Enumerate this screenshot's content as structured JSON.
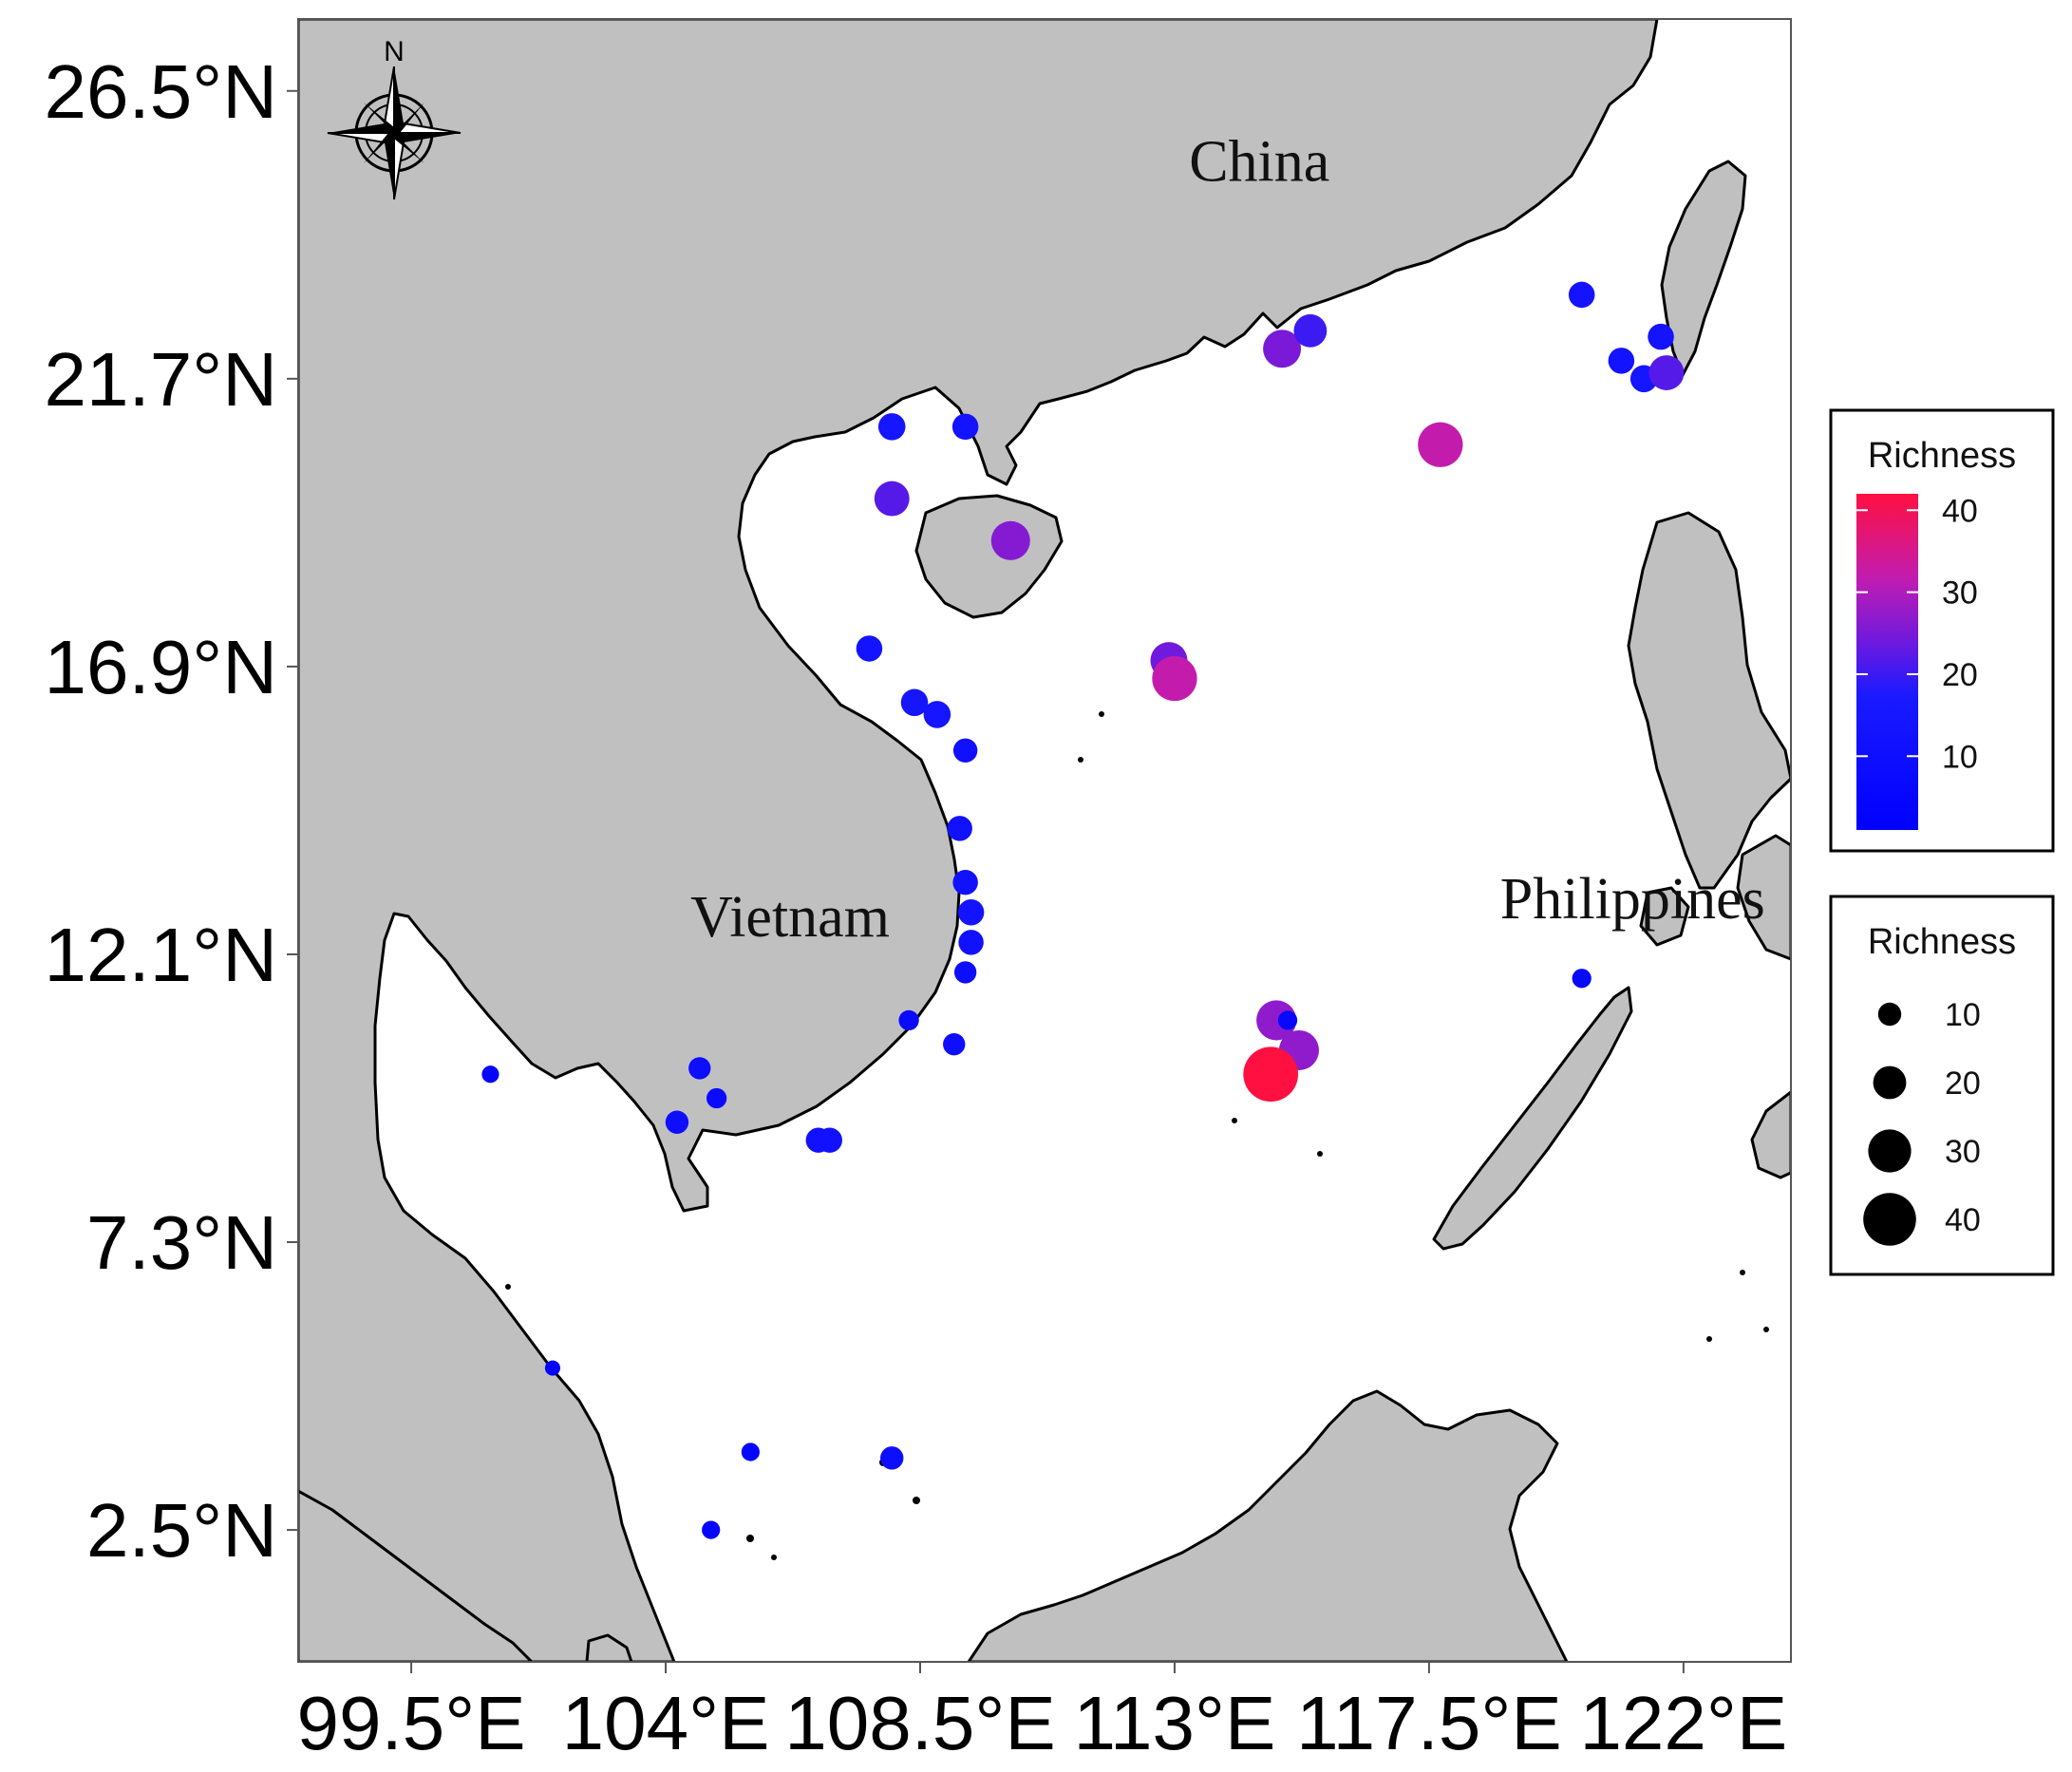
{
  "map": {
    "extent": {
      "lon": [
        97.5,
        123.9
      ],
      "lat": [
        0.3,
        27.7
      ]
    },
    "colors": {
      "land": "#c0c0c0",
      "sea": "#ffffff",
      "coast": "#000000"
    },
    "lat_ticks": [
      {
        "value": 26.5,
        "label": "26.5°N"
      },
      {
        "value": 21.7,
        "label": "21.7°N"
      },
      {
        "value": 16.9,
        "label": "16.9°N"
      },
      {
        "value": 12.1,
        "label": "12.1°N"
      },
      {
        "value": 7.3,
        "label": "7.3°N"
      },
      {
        "value": 2.5,
        "label": "2.5°N"
      }
    ],
    "lon_ticks": [
      {
        "value": 99.5,
        "label": "99.5°E"
      },
      {
        "value": 104,
        "label": "104°E"
      },
      {
        "value": 108.5,
        "label": "108.5°E"
      },
      {
        "value": 113,
        "label": "113°E"
      },
      {
        "value": 117.5,
        "label": "117.5°E"
      },
      {
        "value": 122,
        "label": "122°E"
      }
    ],
    "place_labels": {
      "china": {
        "text": "China",
        "lon": 114.5,
        "lat": 25.0
      },
      "vietnam": {
        "text": "Vietnam",
        "lon": 106.2,
        "lat": 12.4
      },
      "philippines": {
        "text": "Philippines",
        "lon": 121.1,
        "lat": 12.7
      }
    },
    "north_arrow": {
      "letter": "N"
    }
  },
  "points": [
    {
      "lon": 108.0,
      "lat": 20.9,
      "richness": 14
    },
    {
      "lon": 109.3,
      "lat": 20.9,
      "richness": 13
    },
    {
      "lon": 108.0,
      "lat": 19.7,
      "richness": 22
    },
    {
      "lon": 110.1,
      "lat": 19.0,
      "richness": 26
    },
    {
      "lon": 107.6,
      "lat": 17.2,
      "richness": 13
    },
    {
      "lon": 108.4,
      "lat": 16.3,
      "richness": 14
    },
    {
      "lon": 108.8,
      "lat": 16.1,
      "richness": 14
    },
    {
      "lon": 109.3,
      "lat": 15.5,
      "richness": 11
    },
    {
      "lon": 109.2,
      "lat": 14.2,
      "richness": 12
    },
    {
      "lon": 109.3,
      "lat": 13.3,
      "richness": 12
    },
    {
      "lon": 109.4,
      "lat": 12.8,
      "richness": 13
    },
    {
      "lon": 109.4,
      "lat": 12.3,
      "richness": 12
    },
    {
      "lon": 109.3,
      "lat": 11.8,
      "richness": 9
    },
    {
      "lon": 108.3,
      "lat": 11.0,
      "richness": 7
    },
    {
      "lon": 109.1,
      "lat": 10.6,
      "richness": 9
    },
    {
      "lon": 106.9,
      "lat": 9.0,
      "richness": 12
    },
    {
      "lon": 106.7,
      "lat": 9.0,
      "richness": 12
    },
    {
      "lon": 104.6,
      "lat": 10.2,
      "richness": 9
    },
    {
      "lon": 104.9,
      "lat": 9.7,
      "richness": 7
    },
    {
      "lon": 104.2,
      "lat": 9.3,
      "richness": 10
    },
    {
      "lon": 100.9,
      "lat": 10.1,
      "richness": 4
    },
    {
      "lon": 102.0,
      "lat": 5.2,
      "richness": 2
    },
    {
      "lon": 105.5,
      "lat": 3.8,
      "richness": 5
    },
    {
      "lon": 108.0,
      "lat": 3.7,
      "richness": 10
    },
    {
      "lon": 104.8,
      "lat": 2.5,
      "richness": 5
    },
    {
      "lon": 114.9,
      "lat": 22.2,
      "richness": 25
    },
    {
      "lon": 115.4,
      "lat": 22.5,
      "richness": 20
    },
    {
      "lon": 117.7,
      "lat": 20.6,
      "richness": 32
    },
    {
      "lon": 112.9,
      "lat": 17.0,
      "richness": 24
    },
    {
      "lon": 113.0,
      "lat": 16.7,
      "richness": 32
    },
    {
      "lon": 114.8,
      "lat": 11.0,
      "richness": 27
    },
    {
      "lon": 115.0,
      "lat": 11.0,
      "richness": 6
    },
    {
      "lon": 115.2,
      "lat": 10.5,
      "richness": 27
    },
    {
      "lon": 114.7,
      "lat": 10.1,
      "richness": 42
    },
    {
      "lon": 120.2,
      "lat": 23.1,
      "richness": 13
    },
    {
      "lon": 121.6,
      "lat": 22.4,
      "richness": 13
    },
    {
      "lon": 120.9,
      "lat": 22.0,
      "richness": 13
    },
    {
      "lon": 121.3,
      "lat": 21.7,
      "richness": 14
    },
    {
      "lon": 121.7,
      "lat": 21.8,
      "richness": 22
    },
    {
      "lon": 120.2,
      "lat": 11.7,
      "richness": 6
    }
  ],
  "legend": {
    "color": {
      "title": "Richness",
      "ticks": [
        {
          "value": 40,
          "label": "40"
        },
        {
          "value": 30,
          "label": "30"
        },
        {
          "value": 20,
          "label": "20"
        },
        {
          "value": 10,
          "label": "10"
        }
      ],
      "range": [
        1,
        42
      ],
      "stops": [
        "#0000ff",
        "#1a1aff",
        "#6a1ae0",
        "#c21cb0",
        "#ff1040"
      ]
    },
    "size": {
      "title": "Richness",
      "entries": [
        {
          "value": 10,
          "label": "10"
        },
        {
          "value": 20,
          "label": "20"
        },
        {
          "value": 30,
          "label": "30"
        },
        {
          "value": 40,
          "label": "40"
        }
      ]
    }
  }
}
